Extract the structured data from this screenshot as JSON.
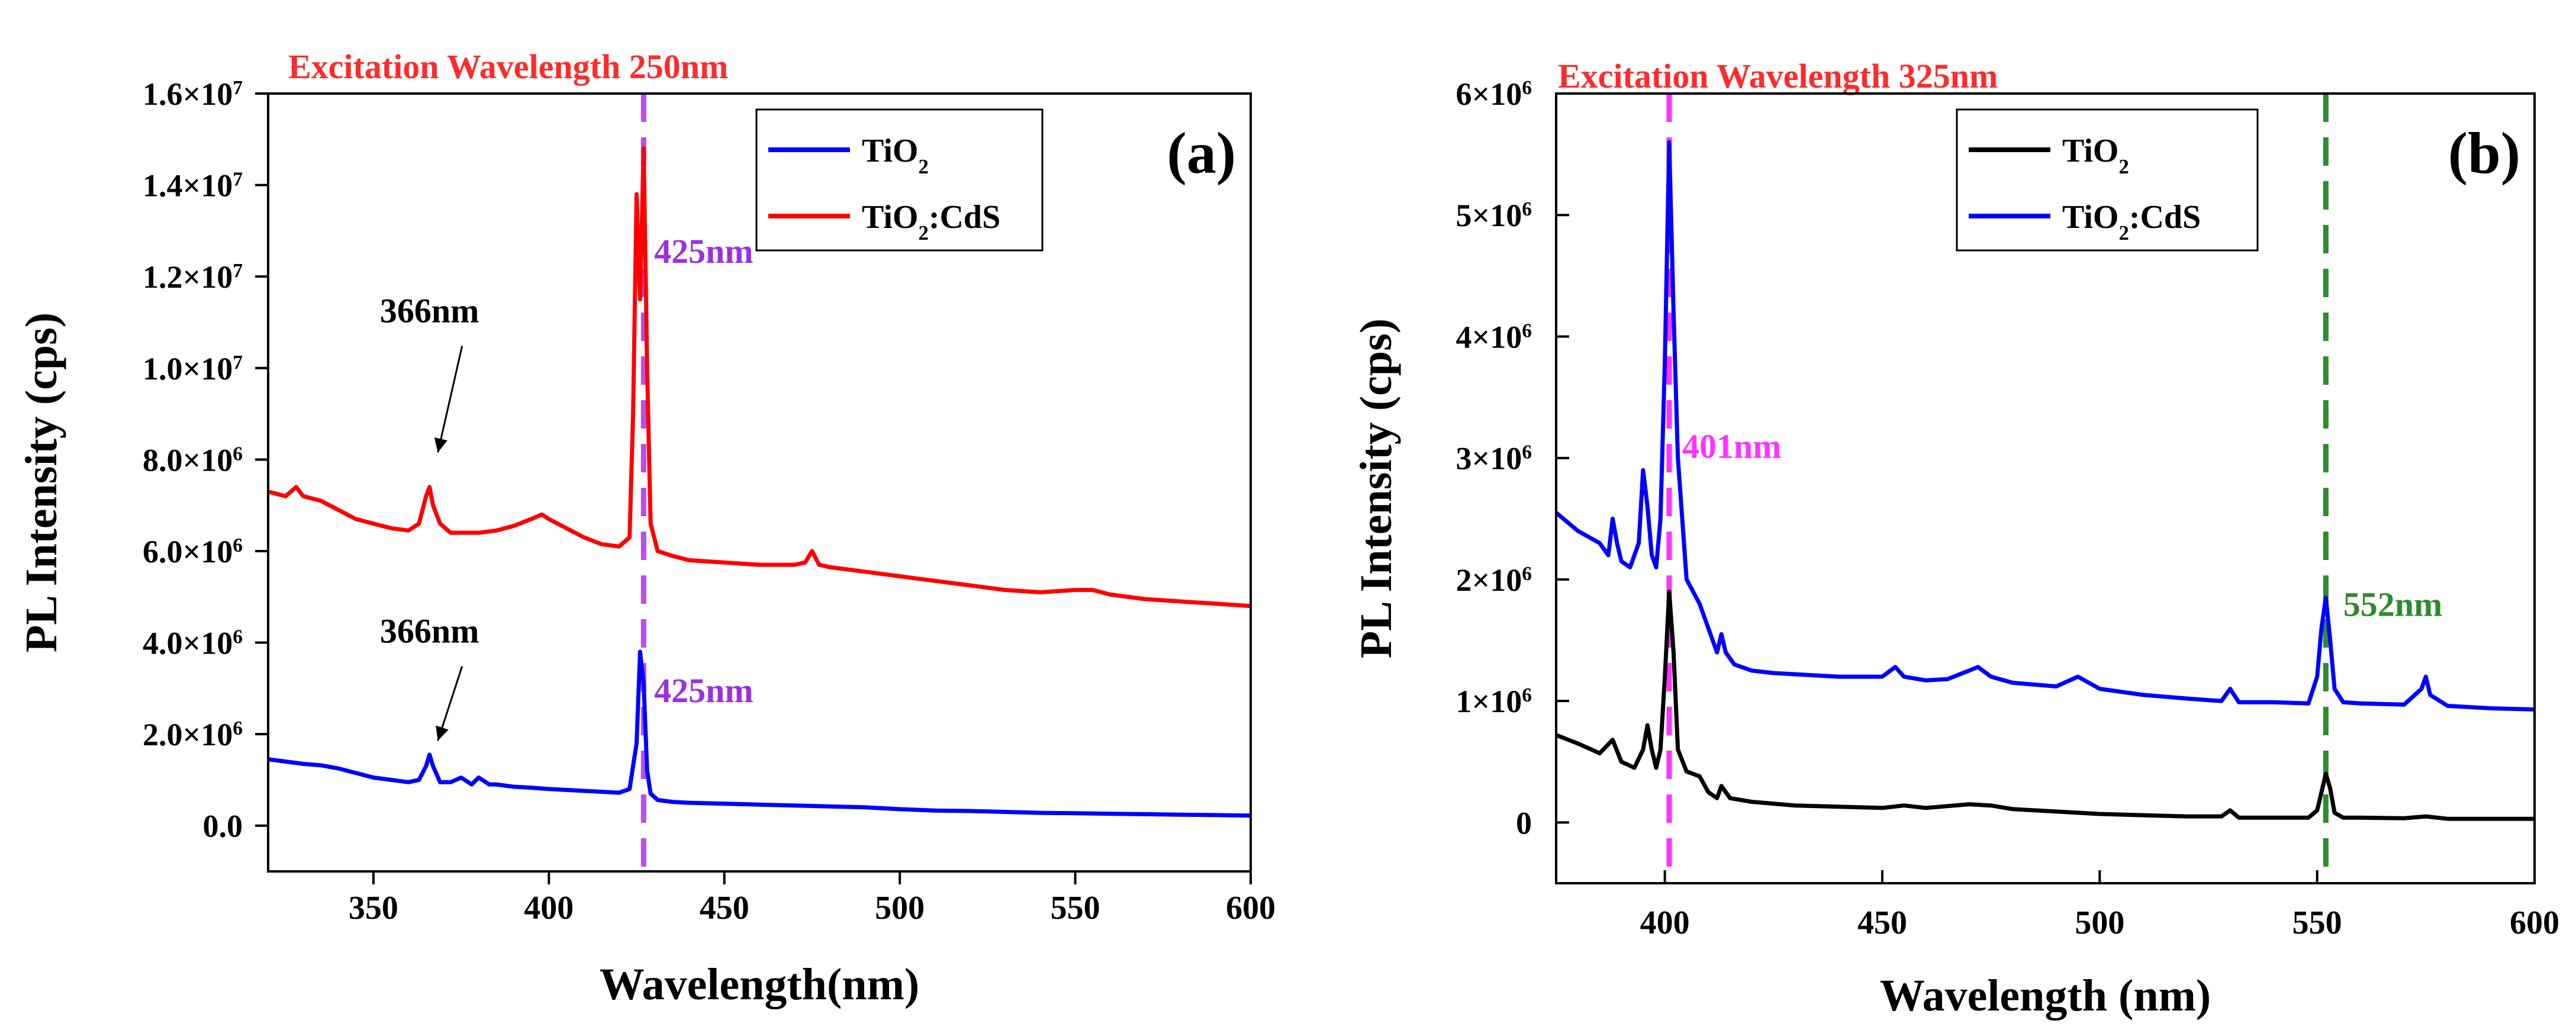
{
  "chart_data": [
    {
      "type": "line",
      "panel_label": "(a)",
      "title": "Excitation Wavelength 250nm",
      "title_color": "#ff2a2a",
      "xlabel": "Wavelength(nm)",
      "ylabel": "PL Intensity (cps)",
      "xlim": [
        320,
        600
      ],
      "ylim": [
        -1000000,
        16000000
      ],
      "xticks": [
        350,
        400,
        450,
        500,
        550,
        600
      ],
      "xtick_labels": [
        "350",
        "400",
        "450",
        "500",
        "550",
        "600"
      ],
      "yticks": [
        0,
        2000000,
        4000000,
        6000000,
        8000000,
        10000000,
        12000000,
        14000000,
        16000000
      ],
      "ytick_labels": [
        {
          "base": "0.0",
          "exp": ""
        },
        {
          "base": "2.0×10",
          "exp": "6"
        },
        {
          "base": "4.0×10",
          "exp": "6"
        },
        {
          "base": "6.0×10",
          "exp": "6"
        },
        {
          "base": "8.0×10",
          "exp": "6"
        },
        {
          "base": "1.0×10",
          "exp": "7"
        },
        {
          "base": "1.2×10",
          "exp": "7"
        },
        {
          "base": "1.4×10",
          "exp": "7"
        },
        {
          "base": "1.6×10",
          "exp": "7"
        }
      ],
      "legend": {
        "placement": "top-right",
        "entries": [
          {
            "label": "TiO",
            "sub": "2",
            "rest": "",
            "color": "#0000ff"
          },
          {
            "label": "TiO",
            "sub": "2",
            "rest": ":CdS",
            "color": "#ff0000"
          }
        ]
      },
      "reference_lines": [
        {
          "x": 427,
          "color": "#b94fe8",
          "style": "dashed"
        }
      ],
      "annotations": [
        {
          "text": "366nm",
          "x": 366,
          "y": 11000000,
          "color": "#000000",
          "arrow_to": [
            366,
            8000000
          ]
        },
        {
          "text": "425nm",
          "x": 430,
          "y": 12300000,
          "color": "#9b30e0"
        },
        {
          "text": "366nm",
          "x": 366,
          "y": 4000000,
          "color": "#000000",
          "arrow_to": [
            366,
            1700000
          ]
        },
        {
          "text": "425nm",
          "x": 430,
          "y": 2700000,
          "color": "#9b30e0"
        }
      ],
      "series": [
        {
          "name": "TiO2",
          "color": "#0000ff",
          "x": [
            320,
            325,
            330,
            335,
            340,
            345,
            350,
            355,
            360,
            363,
            365,
            366,
            367,
            369,
            372,
            375,
            378,
            380,
            383,
            385,
            390,
            395,
            400,
            405,
            410,
            415,
            420,
            423,
            425,
            426,
            427,
            428,
            429,
            431,
            435,
            440,
            450,
            460,
            470,
            480,
            490,
            500,
            510,
            520,
            530,
            540,
            550,
            560,
            570,
            580,
            590,
            600
          ],
          "y": [
            1450000,
            1400000,
            1350000,
            1320000,
            1250000,
            1150000,
            1050000,
            1000000,
            950000,
            1000000,
            1300000,
            1550000,
            1300000,
            950000,
            950000,
            1050000,
            900000,
            1050000,
            900000,
            900000,
            850000,
            830000,
            800000,
            780000,
            760000,
            740000,
            720000,
            800000,
            1800000,
            3800000,
            3100000,
            1200000,
            700000,
            560000,
            520000,
            500000,
            480000,
            460000,
            440000,
            420000,
            400000,
            360000,
            330000,
            320000,
            300000,
            280000,
            270000,
            260000,
            250000,
            240000,
            230000,
            220000
          ]
        },
        {
          "name": "TiO2:CdS",
          "color": "#ff0000",
          "x": [
            320,
            325,
            328,
            330,
            335,
            340,
            345,
            350,
            355,
            360,
            363,
            365,
            366,
            367,
            369,
            372,
            380,
            385,
            390,
            395,
            398,
            400,
            405,
            410,
            415,
            420,
            423,
            424,
            425,
            426,
            427,
            428,
            429,
            431,
            435,
            440,
            450,
            460,
            470,
            473,
            475,
            477,
            480,
            490,
            500,
            510,
            520,
            530,
            540,
            550,
            555,
            560,
            570,
            580,
            590,
            600
          ],
          "y": [
            7300000,
            7200000,
            7400000,
            7200000,
            7100000,
            6900000,
            6700000,
            6600000,
            6500000,
            6450000,
            6600000,
            7200000,
            7400000,
            7000000,
            6600000,
            6400000,
            6400000,
            6450000,
            6550000,
            6700000,
            6800000,
            6700000,
            6500000,
            6300000,
            6150000,
            6100000,
            6300000,
            9000000,
            13800000,
            11500000,
            14800000,
            10000000,
            6600000,
            6000000,
            5900000,
            5800000,
            5750000,
            5700000,
            5700000,
            5750000,
            6000000,
            5700000,
            5650000,
            5550000,
            5450000,
            5350000,
            5250000,
            5150000,
            5100000,
            5150000,
            5150000,
            5050000,
            4950000,
            4900000,
            4850000,
            4800000
          ]
        }
      ]
    },
    {
      "type": "line",
      "panel_label": "(b)",
      "title": "Excitation Wavelength 325nm",
      "title_color": "#ff2a2a",
      "xlabel": "Wavelength (nm)",
      "ylabel": "PL Intensity (cps)",
      "xlim": [
        375,
        600
      ],
      "ylim": [
        -500000,
        6000000
      ],
      "xticks": [
        400,
        450,
        500,
        550,
        600
      ],
      "xtick_labels": [
        "400",
        "450",
        "500",
        "550",
        "600"
      ],
      "yticks": [
        0,
        1000000,
        2000000,
        3000000,
        4000000,
        5000000,
        6000000
      ],
      "ytick_labels": [
        {
          "base": "0",
          "exp": ""
        },
        {
          "base": "1×10",
          "exp": "6"
        },
        {
          "base": "2×10",
          "exp": "6"
        },
        {
          "base": "3×10",
          "exp": "6"
        },
        {
          "base": "4×10",
          "exp": "6"
        },
        {
          "base": "5×10",
          "exp": "6"
        },
        {
          "base": "6×10",
          "exp": "6"
        }
      ],
      "legend": {
        "placement": "top-right",
        "entries": [
          {
            "label": "TiO",
            "sub": "2",
            "rest": "",
            "color": "#000000"
          },
          {
            "label": "TiO",
            "sub": "2",
            "rest": ":CdS",
            "color": "#0000ff"
          }
        ]
      },
      "reference_lines": [
        {
          "x": 401,
          "color": "#ff33ff",
          "style": "dashed"
        },
        {
          "x": 552,
          "color": "#2e8b2e",
          "style": "dashed"
        }
      ],
      "annotations": [
        {
          "text": "401nm",
          "x": 404,
          "y": 3000000,
          "color": "#ff33ff"
        },
        {
          "text": "552nm",
          "x": 556,
          "y": 1700000,
          "color": "#2e8b2e"
        }
      ],
      "series": [
        {
          "name": "TiO2",
          "color": "#000000",
          "x": [
            375,
            380,
            385,
            388,
            390,
            393,
            395,
            396,
            397,
            398,
            399,
            400,
            401,
            402,
            403,
            405,
            408,
            410,
            412,
            413,
            415,
            420,
            430,
            440,
            450,
            455,
            460,
            470,
            475,
            480,
            490,
            500,
            510,
            520,
            528,
            530,
            532,
            540,
            548,
            550,
            551,
            552,
            553,
            554,
            556,
            560,
            570,
            575,
            580,
            590,
            600
          ],
          "y": [
            720000,
            650000,
            570000,
            680000,
            500000,
            450000,
            600000,
            800000,
            600000,
            450000,
            600000,
            1200000,
            1900000,
            1400000,
            600000,
            420000,
            380000,
            250000,
            200000,
            300000,
            200000,
            170000,
            140000,
            130000,
            120000,
            140000,
            120000,
            150000,
            140000,
            110000,
            90000,
            70000,
            60000,
            50000,
            50000,
            100000,
            40000,
            40000,
            40000,
            100000,
            250000,
            400000,
            280000,
            80000,
            40000,
            40000,
            35000,
            50000,
            30000,
            30000,
            30000
          ]
        },
        {
          "name": "TiO2:CdS",
          "color": "#0000ff",
          "x": [
            375,
            380,
            385,
            387,
            388,
            389,
            390,
            392,
            394,
            395,
            396,
            397,
            398,
            399,
            400,
            401,
            402,
            403,
            405,
            408,
            410,
            412,
            413,
            414,
            416,
            420,
            425,
            430,
            440,
            450,
            453,
            455,
            460,
            465,
            470,
            472,
            475,
            480,
            490,
            495,
            500,
            510,
            520,
            528,
            530,
            532,
            540,
            548,
            550,
            551,
            552,
            553,
            554,
            556,
            560,
            570,
            574,
            575,
            576,
            580,
            590,
            600
          ],
          "y": [
            2550000,
            2400000,
            2300000,
            2200000,
            2500000,
            2300000,
            2150000,
            2100000,
            2300000,
            2900000,
            2600000,
            2200000,
            2100000,
            2500000,
            3800000,
            5600000,
            4200000,
            3000000,
            2000000,
            1800000,
            1600000,
            1400000,
            1550000,
            1400000,
            1300000,
            1250000,
            1230000,
            1220000,
            1200000,
            1200000,
            1280000,
            1200000,
            1170000,
            1180000,
            1250000,
            1280000,
            1200000,
            1150000,
            1120000,
            1200000,
            1100000,
            1050000,
            1020000,
            1000000,
            1100000,
            990000,
            990000,
            980000,
            1200000,
            1600000,
            1850000,
            1500000,
            1100000,
            990000,
            980000,
            970000,
            1100000,
            1200000,
            1050000,
            960000,
            940000,
            930000
          ]
        }
      ]
    }
  ]
}
